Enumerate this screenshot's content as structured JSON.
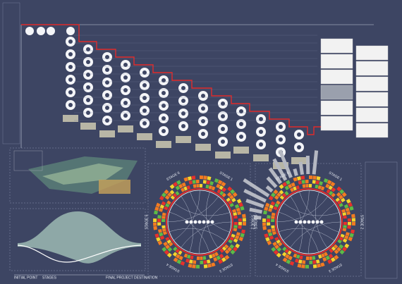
{
  "circles": [
    {
      "stages": [
        "STAGE 6",
        "STAGE 1",
        "STAGE 2",
        "STAGE 3",
        "STAGE 4",
        "STAGE 5"
      ]
    },
    {
      "stages": [
        "STAGE 6",
        "STAGE 1",
        "STAGE 2",
        "STAGE 3",
        "STAGE 4",
        "STAGE 5"
      ]
    }
  ],
  "flow": {
    "start": "INITIAL POINT",
    "middle": "STAGES",
    "end": "FINAL PROJECT DESTINATION"
  }
}
